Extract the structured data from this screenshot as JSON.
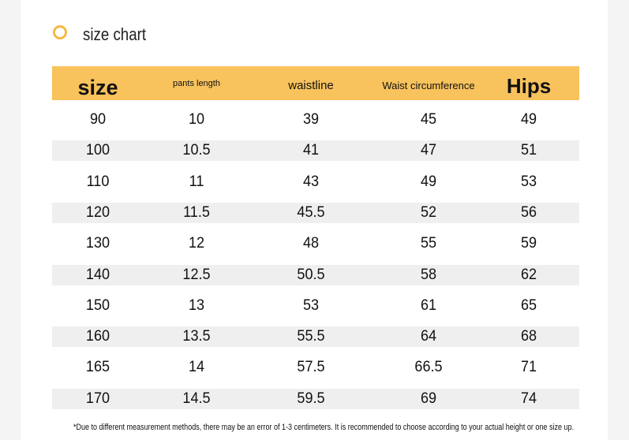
{
  "header": {
    "title": "size chart"
  },
  "table": {
    "columns": [
      "size",
      "pants length",
      "waistline",
      "Waist circumference",
      "Hips"
    ],
    "rows": [
      [
        "90",
        "10",
        "39",
        "45",
        "49"
      ],
      [
        "100",
        "10.5",
        "41",
        "47",
        "51"
      ],
      [
        "110",
        "11",
        "43",
        "49",
        "53"
      ],
      [
        "120",
        "11.5",
        "45.5",
        "52",
        "56"
      ],
      [
        "130",
        "12",
        "48",
        "55",
        "59"
      ],
      [
        "140",
        "12.5",
        "50.5",
        "58",
        "62"
      ],
      [
        "150",
        "13",
        "53",
        "61",
        "65"
      ],
      [
        "160",
        "13.5",
        "55.5",
        "64",
        "68"
      ],
      [
        "165",
        "14",
        "57.5",
        "66.5",
        "71"
      ],
      [
        "170",
        "14.5",
        "59.5",
        "69",
        "74"
      ]
    ]
  },
  "footnote": "*Due to different measurement methods, there may be an error of 1-3 centimeters. It is recommended to choose according to your actual height or one size up."
}
